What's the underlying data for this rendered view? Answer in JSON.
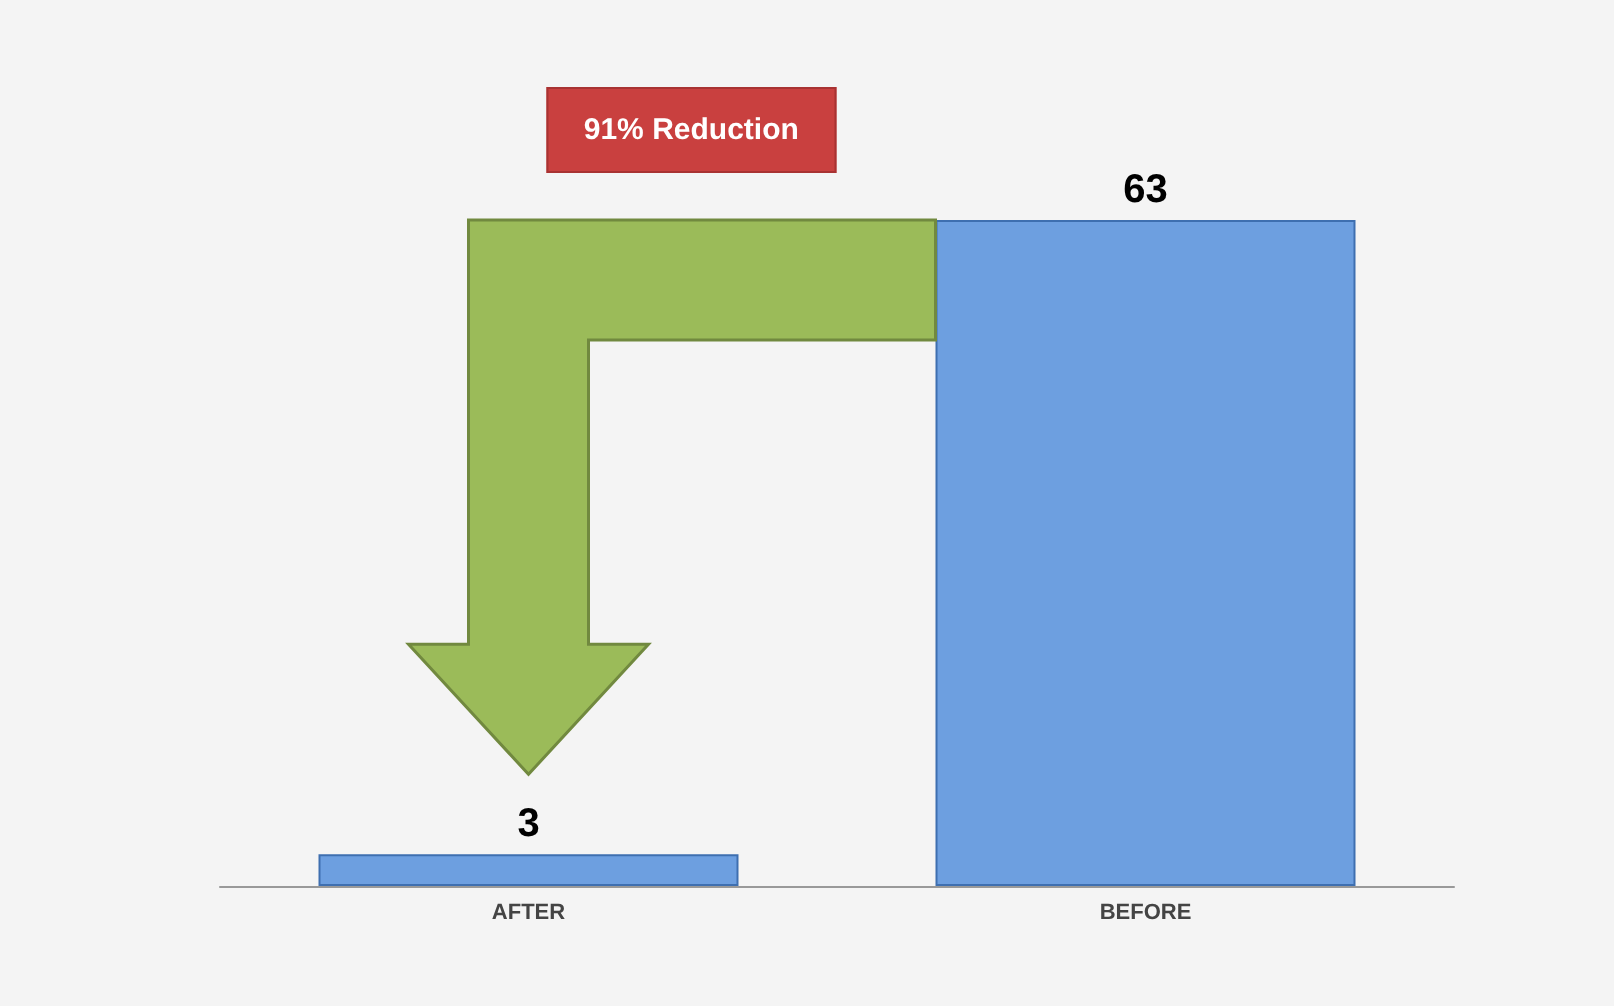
{
  "chart_data": {
    "type": "bar",
    "categories": [
      "AFTER",
      "BEFORE"
    ],
    "values": [
      3,
      63
    ],
    "color": "#6d9fe0",
    "data_labels": true,
    "annotations": [
      "91% Reduction"
    ]
  }
}
